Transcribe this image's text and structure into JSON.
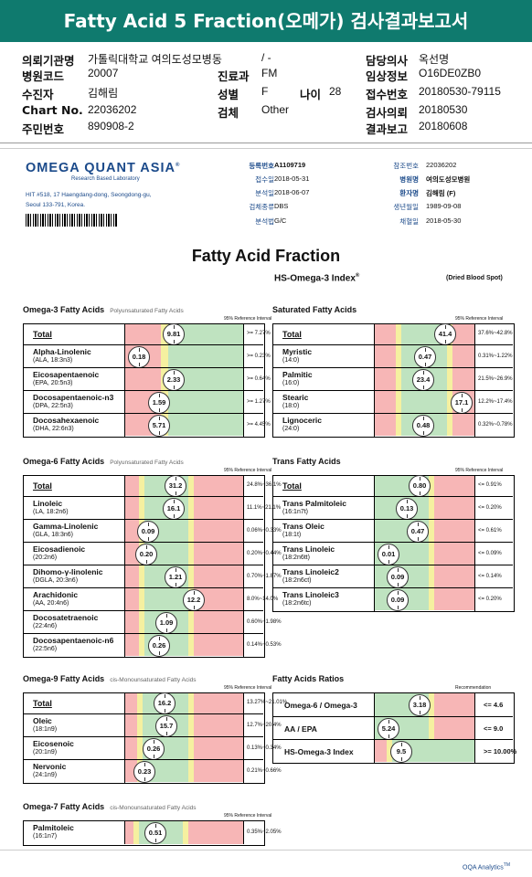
{
  "banner": {
    "title": "Fatty Acid 5 Fraction(오메가) 검사결과보고서"
  },
  "info": {
    "inst_k": "의뢰기관명",
    "inst_v": "가톨릭대학교 여의도성모병동",
    "inst_v2": "/ -",
    "doctor_k": "담당의사",
    "doctor_v": "옥선명",
    "code_k": "병원코드",
    "code_v": "20007",
    "dept_k": "진료과",
    "dept_v": "FM",
    "clin_k": "임상정보",
    "clin_v": "O16DE0ZB0",
    "name_k": "수진자",
    "name_v": "김해림",
    "sex_k": "성별",
    "sex_v": "F",
    "age_k": "나이",
    "age_v": "28",
    "recv_k": "접수번호",
    "recv_v": "20180530-79115",
    "chart_k": "Chart No.",
    "chart_v": "22036202",
    "exam_k": "검체",
    "exam_v": "Other",
    "req_k": "검사의뢰",
    "req_v": "20180530",
    "id_k": "주민번호",
    "id_v": "890908-2",
    "rep_k": "결과보고",
    "rep_v": "20180608"
  },
  "lab": {
    "logo": "OMEGA QUANT ASIA",
    "logo_tm": "®",
    "logo_sub": "Research Based Laboratory",
    "addr1": "HIT #518, 17 Haengdang-dong, Seongdong-gu,",
    "addr2": "Seoul 133-791, Korea."
  },
  "meta": {
    "reg_k": "등록번호",
    "reg_v": "A1109719",
    "recvd_k": "접수일",
    "recvd_v": "2018-05-31",
    "anal_k": "분석일",
    "anal_v": "2018-06-07",
    "spec_k": "검체종류",
    "spec_v": "DBS",
    "meth_k": "분석법",
    "meth_v": "G/C",
    "ref_k": "참조번호",
    "ref_v": "22036202",
    "hosp_k": "병원명",
    "hosp_v": "여의도성모병원",
    "pat_k": "환자명",
    "pat_v": "김해림 (F)",
    "dob_k": "생년월일",
    "dob_v": "1989-09-08",
    "draw_k": "채혈일",
    "draw_v": "2018-05-30"
  },
  "report": {
    "title": "Fatty Acid Fraction",
    "subtitle": "HS-Omega-3 Index",
    "subtitle_mark": "®",
    "specimen": "(Dried Blood Spot)"
  },
  "panels": {
    "omega3": {
      "title": "Omega-3 Fatty Acids",
      "sub": "Polyunsaturated Fatty Acids",
      "ref": "95% Reference Interval",
      "rows": [
        {
          "name": "Total",
          "sub": "",
          "value": "9.81",
          "ref": ">= 7.27%"
        },
        {
          "name": "Alpha-Linolenic",
          "sub": "(ALA, 18:3n3)",
          "value": "0.18",
          "ref": ">= 0.23%"
        },
        {
          "name": "Eicosapentaenoic",
          "sub": "(EPA, 20:5n3)",
          "value": "2.33",
          "ref": ">= 0.64%"
        },
        {
          "name": "Docosapentaenoic-n3",
          "sub": "(DPA, 22:5n3)",
          "value": "1.59",
          "ref": ">= 1.27%"
        },
        {
          "name": "Docosahexaenoic",
          "sub": "(DHA, 22:6n3)",
          "value": "5.71",
          "ref": ">= 4.45%"
        }
      ]
    },
    "saturated": {
      "title": "Saturated Fatty Acids",
      "sub": "",
      "ref": "95% Reference Interval",
      "rows": [
        {
          "name": "Total",
          "sub": "",
          "value": "41.4",
          "ref": "37.6%~42.8%"
        },
        {
          "name": "Myristic",
          "sub": "(14:0)",
          "value": "0.47",
          "ref": "0.31%~1.22%"
        },
        {
          "name": "Palmitic",
          "sub": "(16:0)",
          "value": "23.4",
          "ref": "21.5%~26.9%"
        },
        {
          "name": "Stearic",
          "sub": "(18:0)",
          "value": "17.1",
          "ref": "12.2%~17.4%"
        },
        {
          "name": "Lignoceric",
          "sub": "(24:0)",
          "value": "0.48",
          "ref": "0.32%~0.78%"
        }
      ]
    },
    "omega6": {
      "title": "Omega-6 Fatty Acids",
      "sub": "Polyunsaturated Fatty Acids",
      "ref": "95% Reference Interval",
      "rows": [
        {
          "name": "Total",
          "sub": "",
          "value": "31.2",
          "ref": "24.8%~36.1%"
        },
        {
          "name": "Linoleic",
          "sub": "(LA, 18:2n6)",
          "value": "16.1",
          "ref": "11.1%~21.1%"
        },
        {
          "name": "Gamma-Linolenic",
          "sub": "(GLA, 18:3n6)",
          "value": "0.09",
          "ref": "0.06%~0.33%"
        },
        {
          "name": "Eicosadienoic",
          "sub": "(20:2n6)",
          "value": "0.20",
          "ref": "0.20%~0.44%"
        },
        {
          "name": "Dihomo-γ-linolenic",
          "sub": "(DGLA, 20:3n6)",
          "value": "1.21",
          "ref": "0.70%~1.87%"
        },
        {
          "name": "Arachidonic",
          "sub": "(AA, 20:4n6)",
          "value": "12.2",
          "ref": "8.0%~14.0%"
        },
        {
          "name": "Docosatetraenoic",
          "sub": "(22:4n6)",
          "value": "1.09",
          "ref": "0.60%~1.98%"
        },
        {
          "name": "Docosapentaenoic-n6",
          "sub": "(22:5n6)",
          "value": "0.26",
          "ref": "0.14%~0.53%"
        }
      ]
    },
    "trans": {
      "title": "Trans Fatty Acids",
      "sub": "",
      "ref": "95% Reference Interval",
      "rows": [
        {
          "name": "Total",
          "sub": "",
          "value": "0.80",
          "ref": "<= 0.91%"
        },
        {
          "name": "Trans Palmitoleic",
          "sub": "(16:1n7t)",
          "value": "0.13",
          "ref": "<= 0.20%"
        },
        {
          "name": "Trans Oleic",
          "sub": "(18:1t)",
          "value": "0.47",
          "ref": "<= 0.61%"
        },
        {
          "name": "Trans Linoleic",
          "sub": "(18:2n6tt)",
          "value": "0.01",
          "ref": "<= 0.09%"
        },
        {
          "name": "Trans Linoleic2",
          "sub": "(18:2n6ct)",
          "value": "0.09",
          "ref": "<= 0.14%"
        },
        {
          "name": "Trans Linoleic3",
          "sub": "(18:2n6tc)",
          "value": "0.09",
          "ref": "<= 0.20%"
        }
      ]
    },
    "omega9": {
      "title": "Omega-9 Fatty Acids",
      "sub": "cis-Monounsaturated Fatty Acids",
      "ref": "95% Reference Interval",
      "rows": [
        {
          "name": "Total",
          "sub": "",
          "value": "16.2",
          "ref": "13.27%~21.01%"
        },
        {
          "name": "Oleic",
          "sub": "(18:1n9)",
          "value": "15.7",
          "ref": "12.7%~20.4%"
        },
        {
          "name": "Eicosenoic",
          "sub": "(20:1n9)",
          "value": "0.26",
          "ref": "0.13%~0.34%"
        },
        {
          "name": "Nervonic",
          "sub": "(24:1n9)",
          "value": "0.23",
          "ref": "0.21%~0.66%"
        }
      ]
    },
    "ratios": {
      "title": "Fatty Acids Ratios",
      "ref": "Recommendation",
      "rows": [
        {
          "name": "Omega-6 / Omega-3",
          "value": "3.18",
          "ref": "<= 4.6"
        },
        {
          "name": "AA / EPA",
          "value": "5.24",
          "ref": "<= 9.0"
        },
        {
          "name": "HS-Omega-3 Index",
          "value": "9.5",
          "ref": ">= 10.00%"
        }
      ]
    },
    "omega7": {
      "title": "Omega-7 Fatty Acids",
      "sub": "cis-Monounsaturated Fatty Acids",
      "ref": "95% Reference Interval",
      "rows": [
        {
          "name": "Palmitoleic",
          "sub": "(16:1n7)",
          "value": "0.51",
          "ref": "0.35%~2.05%"
        }
      ]
    }
  },
  "footer": {
    "brand": "OQA Analytics",
    "tm": "TM"
  },
  "colors": {
    "green": "#bfe3c0",
    "yellow": "#f5f0a0",
    "red": "#f7b6b6",
    "banner": "#0f7a6e"
  }
}
